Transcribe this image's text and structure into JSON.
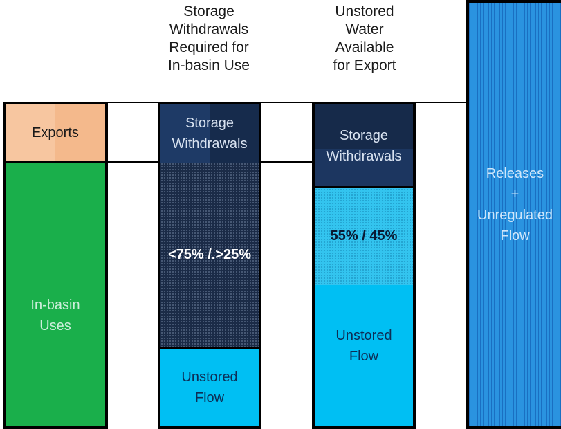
{
  "headings": {
    "col2": "Storage\nWithdrawals\nRequired for\nIn-basin Use",
    "col3": "Unstored\nWater\nAvailable\nfor Export"
  },
  "columns": {
    "col1": {
      "top_label": "Exports",
      "bottom_label": "In-basin\nUses"
    },
    "col2": {
      "top_label": "Storage\nWithdrawals",
      "middle_label": "<75% /.>25%",
      "bottom_label": "Unstored\nFlow"
    },
    "col3": {
      "top_label": "Storage\nWithdrawals",
      "middle_label": "55% / 45%",
      "bottom_label": "Unstored\nFlow"
    },
    "col4": {
      "label": "Releases\n+\nUnregulated\nFlow"
    }
  },
  "colors": {
    "exports": "#f7c49a",
    "in_basin_uses": "#1aaf4b",
    "storage_withdrawals": "#17294a",
    "unstored_flow": "#00bff3",
    "releases": "#1f86d6"
  }
}
